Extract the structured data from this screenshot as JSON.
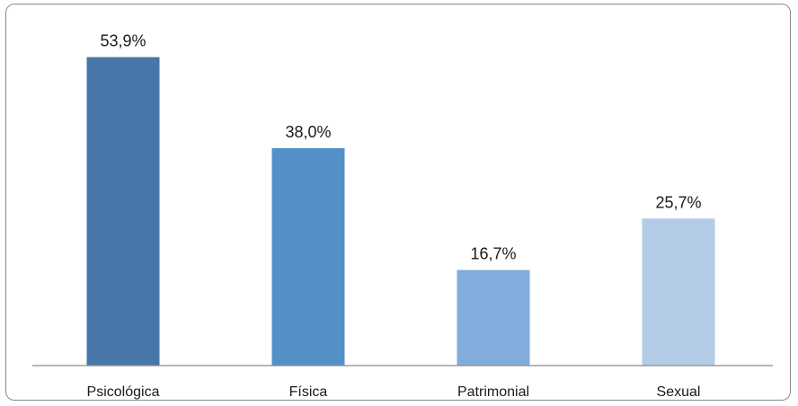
{
  "chart_data": {
    "type": "bar",
    "categories": [
      "Psicológica",
      "Física",
      "Patrimonial",
      "Sexual"
    ],
    "values": [
      53.9,
      38.0,
      16.7,
      25.7
    ],
    "value_labels": [
      "53,9%",
      "38,0%",
      "16,7%",
      "25,7%"
    ],
    "colors": [
      "#4677A8",
      "#5390C8",
      "#80ADDB",
      "#B3CBE6"
    ],
    "ylim": [
      0,
      62
    ],
    "grid": false,
    "legend": "none"
  }
}
